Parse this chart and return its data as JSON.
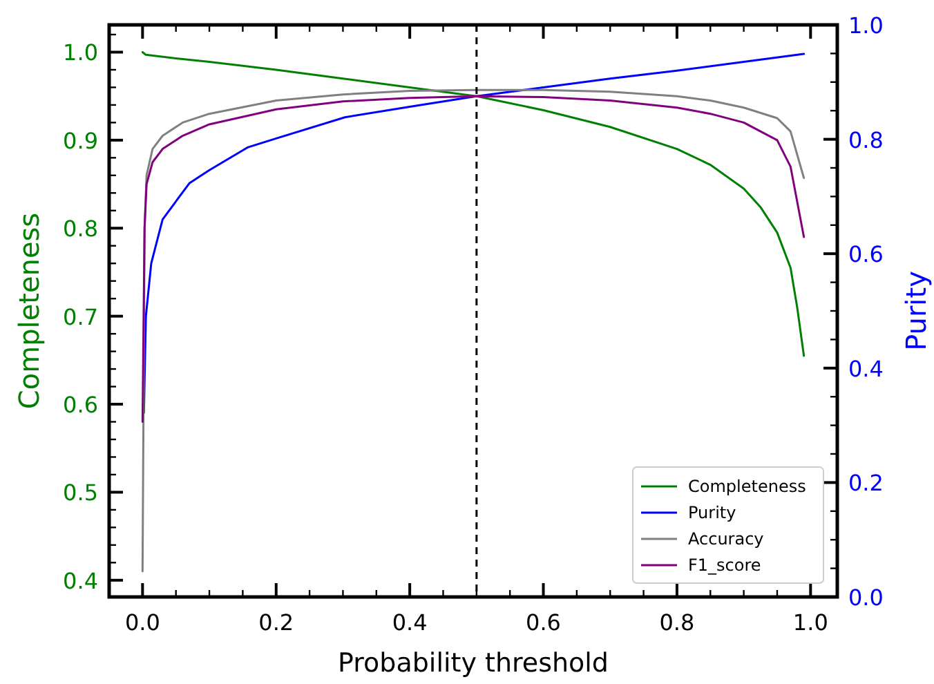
{
  "chart_data": {
    "type": "line",
    "xlabel": "Probability threshold",
    "ylabel": "Completeness",
    "y2label": "Purity",
    "xlim": [
      -0.05,
      1.04
    ],
    "ylim": [
      0.381,
      1.031
    ],
    "y2lim": [
      0,
      1
    ],
    "xticks": [
      {
        "value": 0,
        "label": "0.0"
      },
      {
        "value": 0.05,
        "label": null
      },
      {
        "value": 0.1,
        "label": null
      },
      {
        "value": 0.15,
        "label": null
      },
      {
        "value": 0.2,
        "label": "0.2"
      },
      {
        "value": 0.25,
        "label": null
      },
      {
        "value": 0.3,
        "label": null
      },
      {
        "value": 0.35,
        "label": null
      },
      {
        "value": 0.4,
        "label": "0.4"
      },
      {
        "value": 0.45,
        "label": null
      },
      {
        "value": 0.5,
        "label": null
      },
      {
        "value": 0.55,
        "label": null
      },
      {
        "value": 0.6,
        "label": "0.6"
      },
      {
        "value": 0.65,
        "label": null
      },
      {
        "value": 0.7,
        "label": null
      },
      {
        "value": 0.75,
        "label": null
      },
      {
        "value": 0.8,
        "label": "0.8"
      },
      {
        "value": 0.85,
        "label": null
      },
      {
        "value": 0.9,
        "label": null
      },
      {
        "value": 0.95,
        "label": null
      },
      {
        "value": 1,
        "label": "1.0"
      }
    ],
    "yticks": [
      {
        "value": 0.4,
        "label": "0.4"
      },
      {
        "value": 0.42,
        "label": null
      },
      {
        "value": 0.44,
        "label": null
      },
      {
        "value": 0.46,
        "label": null
      },
      {
        "value": 0.48,
        "label": null
      },
      {
        "value": 0.5,
        "label": "0.5"
      },
      {
        "value": 0.52,
        "label": null
      },
      {
        "value": 0.54,
        "label": null
      },
      {
        "value": 0.56,
        "label": null
      },
      {
        "value": 0.58,
        "label": null
      },
      {
        "value": 0.6,
        "label": "0.6"
      },
      {
        "value": 0.62,
        "label": null
      },
      {
        "value": 0.64,
        "label": null
      },
      {
        "value": 0.66,
        "label": null
      },
      {
        "value": 0.68,
        "label": null
      },
      {
        "value": 0.7,
        "label": "0.7"
      },
      {
        "value": 0.72,
        "label": null
      },
      {
        "value": 0.74,
        "label": null
      },
      {
        "value": 0.76,
        "label": null
      },
      {
        "value": 0.78,
        "label": null
      },
      {
        "value": 0.8,
        "label": "0.8"
      },
      {
        "value": 0.82,
        "label": null
      },
      {
        "value": 0.84,
        "label": null
      },
      {
        "value": 0.86,
        "label": null
      },
      {
        "value": 0.88,
        "label": null
      },
      {
        "value": 0.9,
        "label": "0.9"
      },
      {
        "value": 0.92,
        "label": null
      },
      {
        "value": 0.94,
        "label": null
      },
      {
        "value": 0.96,
        "label": null
      },
      {
        "value": 0.98,
        "label": null
      },
      {
        "value": 1,
        "label": "1.0"
      },
      {
        "value": 1.02,
        "label": null
      }
    ],
    "y2ticks": [
      {
        "value": 0,
        "label": "0.0"
      },
      {
        "value": 0.05,
        "label": null
      },
      {
        "value": 0.1,
        "label": null
      },
      {
        "value": 0.15,
        "label": null
      },
      {
        "value": 0.2,
        "label": "0.2"
      },
      {
        "value": 0.25,
        "label": null
      },
      {
        "value": 0.3,
        "label": null
      },
      {
        "value": 0.35,
        "label": null
      },
      {
        "value": 0.4,
        "label": "0.4"
      },
      {
        "value": 0.45,
        "label": null
      },
      {
        "value": 0.5,
        "label": null
      },
      {
        "value": 0.55,
        "label": null
      },
      {
        "value": 0.6,
        "label": "0.6"
      },
      {
        "value": 0.65,
        "label": null
      },
      {
        "value": 0.7,
        "label": null
      },
      {
        "value": 0.75,
        "label": null
      },
      {
        "value": 0.8,
        "label": "0.8"
      },
      {
        "value": 0.85,
        "label": null
      },
      {
        "value": 0.9,
        "label": null
      },
      {
        "value": 0.95,
        "label": null
      },
      {
        "value": 1,
        "label": "1.0"
      }
    ],
    "legend": "bottom right",
    "grid": false,
    "ref_lines": [
      {
        "axis": "x",
        "value": 0.5,
        "color": "#000000",
        "line_style": "dashed"
      }
    ],
    "series": [
      {
        "name": "Completeness",
        "color": "#008000",
        "x": [
          0,
          0.005,
          0.05,
          0.1,
          0.2,
          0.3,
          0.4,
          0.5,
          0.6,
          0.7,
          0.8,
          0.85,
          0.9,
          0.925,
          0.95,
          0.97,
          0.98,
          0.99
        ],
        "values": [
          1.0,
          0.997,
          0.993,
          0.989,
          0.98,
          0.97,
          0.96,
          0.95,
          0.934,
          0.915,
          0.89,
          0.872,
          0.845,
          0.824,
          0.795,
          0.755,
          0.71,
          0.655
        ]
      },
      {
        "name": "Purity",
        "color": "#0000ff",
        "x": [
          0.002,
          0.005,
          0.013,
          0.03,
          0.07,
          0.1,
          0.158,
          0.2,
          0.303,
          0.4,
          0.5,
          0.6,
          0.7,
          0.8,
          0.9,
          0.99
        ],
        "values": [
          0.59,
          0.7,
          0.76,
          0.81,
          0.851,
          0.866,
          0.892,
          0.902,
          0.926,
          0.938,
          0.95,
          0.96,
          0.97,
          0.979,
          0.989,
          0.998
        ]
      },
      {
        "name": "Accuracy",
        "color": "#808080",
        "x": [
          0,
          0.003,
          0.006,
          0.015,
          0.03,
          0.06,
          0.1,
          0.2,
          0.3,
          0.4,
          0.5,
          0.6,
          0.7,
          0.8,
          0.85,
          0.9,
          0.95,
          0.97,
          0.99
        ],
        "values": [
          0.41,
          0.8,
          0.86,
          0.89,
          0.905,
          0.92,
          0.93,
          0.945,
          0.952,
          0.956,
          0.957,
          0.957,
          0.955,
          0.95,
          0.945,
          0.937,
          0.925,
          0.91,
          0.857
        ]
      },
      {
        "name": "F1_score",
        "color": "#800080",
        "x": [
          0,
          0.003,
          0.006,
          0.015,
          0.03,
          0.06,
          0.1,
          0.2,
          0.3,
          0.4,
          0.5,
          0.6,
          0.7,
          0.8,
          0.85,
          0.9,
          0.95,
          0.97,
          0.99
        ],
        "values": [
          0.58,
          0.8,
          0.85,
          0.875,
          0.89,
          0.905,
          0.918,
          0.935,
          0.944,
          0.948,
          0.95,
          0.949,
          0.945,
          0.937,
          0.93,
          0.92,
          0.9,
          0.87,
          0.79
        ]
      }
    ]
  }
}
